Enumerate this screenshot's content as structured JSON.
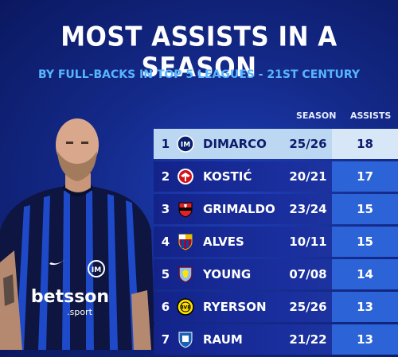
{
  "title": "MOST ASSISTS IN A SEASON",
  "subtitle": "BY FULL-BACKS IN TOP 5 LEAGUES - 21ST CENTURY",
  "columns": {
    "season": "SEASON",
    "assists": "ASSISTS"
  },
  "player": {
    "kit_sponsor": "betsson",
    "kit_sponsor_sub": ".sport"
  },
  "rows": [
    {
      "rank": "1",
      "name": "DIMARCO",
      "season": "25/26",
      "assists": "18",
      "badge": "inter-badge-icon"
    },
    {
      "rank": "2",
      "name": "KOSTIĆ",
      "season": "20/21",
      "assists": "17",
      "badge": "eintracht-badge-icon"
    },
    {
      "rank": "3",
      "name": "GRIMALDO",
      "season": "23/24",
      "assists": "15",
      "badge": "leverkusen-badge-icon"
    },
    {
      "rank": "4",
      "name": "ALVES",
      "season": "10/11",
      "assists": "15",
      "badge": "barcelona-badge-icon"
    },
    {
      "rank": "5",
      "name": "YOUNG",
      "season": "07/08",
      "assists": "14",
      "badge": "aston-villa-badge-icon"
    },
    {
      "rank": "6",
      "name": "RYERSON",
      "season": "25/26",
      "assists": "13",
      "badge": "dortmund-badge-icon"
    },
    {
      "rank": "7",
      "name": "RAUM",
      "season": "21/22",
      "assists": "13",
      "badge": "hoffenheim-badge-icon"
    }
  ],
  "colors": {
    "background": "#142a8a",
    "subtitle": "#57b5ff",
    "highlight_row": "#bcd7f2",
    "assist_box": "#2c63d6"
  }
}
